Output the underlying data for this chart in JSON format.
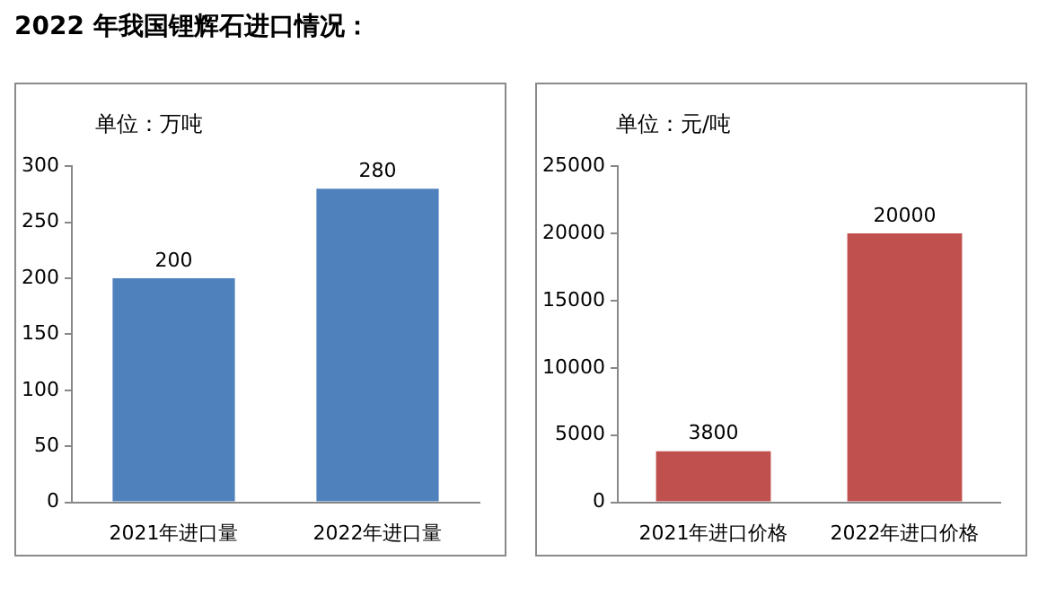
{
  "chart_data": [
    {
      "type": "bar",
      "title": "2022 年我国锂辉石进口情况：",
      "ylabel": "单位：万吨",
      "categories": [
        "2021年进口量",
        "2022年进口量"
      ],
      "values": [
        200,
        280
      ],
      "color": "#4f81bd",
      "ylim": [
        0,
        300
      ],
      "yticks": [
        0,
        50,
        100,
        150,
        200,
        250,
        300
      ],
      "grid": false,
      "data_labels": true
    },
    {
      "type": "bar",
      "ylabel": "单位：元/吨",
      "categories": [
        "2021年进口价格",
        "2022年进口价格"
      ],
      "values": [
        3800,
        20000
      ],
      "color": "#c0504d",
      "ylim": [
        0,
        25000
      ],
      "yticks": [
        0,
        5000,
        10000,
        15000,
        20000,
        25000
      ],
      "grid": false,
      "data_labels": true
    }
  ]
}
